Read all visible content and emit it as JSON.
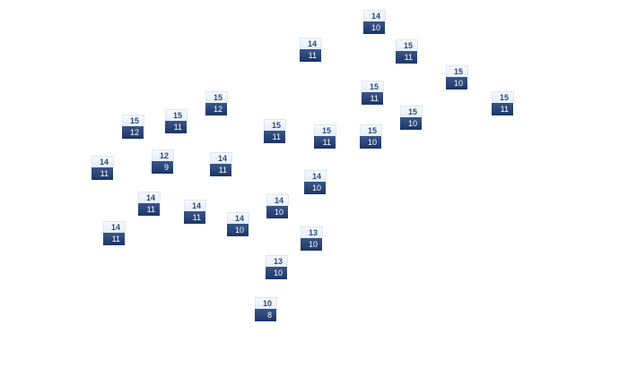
{
  "markers": [
    {
      "top": "14",
      "bottom": "10"
    },
    {
      "top": "14",
      "bottom": "11"
    },
    {
      "top": "15",
      "bottom": "11"
    },
    {
      "top": "15",
      "bottom": "10"
    },
    {
      "top": "15",
      "bottom": "12"
    },
    {
      "top": "15",
      "bottom": "11"
    },
    {
      "top": "15",
      "bottom": "11"
    },
    {
      "top": "15",
      "bottom": "12"
    },
    {
      "top": "15",
      "bottom": "11"
    },
    {
      "top": "15",
      "bottom": "10"
    },
    {
      "top": "15",
      "bottom": "11"
    },
    {
      "top": "15",
      "bottom": "11"
    },
    {
      "top": "15",
      "bottom": "10"
    },
    {
      "top": "14",
      "bottom": "11"
    },
    {
      "top": "12",
      "bottom": "9"
    },
    {
      "top": "14",
      "bottom": "11"
    },
    {
      "top": "14",
      "bottom": "10"
    },
    {
      "top": "14",
      "bottom": "11"
    },
    {
      "top": "14",
      "bottom": "11"
    },
    {
      "top": "14",
      "bottom": "10"
    },
    {
      "top": "14",
      "bottom": "10"
    },
    {
      "top": "14",
      "bottom": "11"
    },
    {
      "top": "13",
      "bottom": "10"
    },
    {
      "top": "13",
      "bottom": "10"
    },
    {
      "top": "10",
      "bottom": "8"
    }
  ],
  "colors": {
    "marker_top": "#eef3fb",
    "marker_bottom": "#1f3a6c",
    "top_text": "#2c4a7e"
  }
}
